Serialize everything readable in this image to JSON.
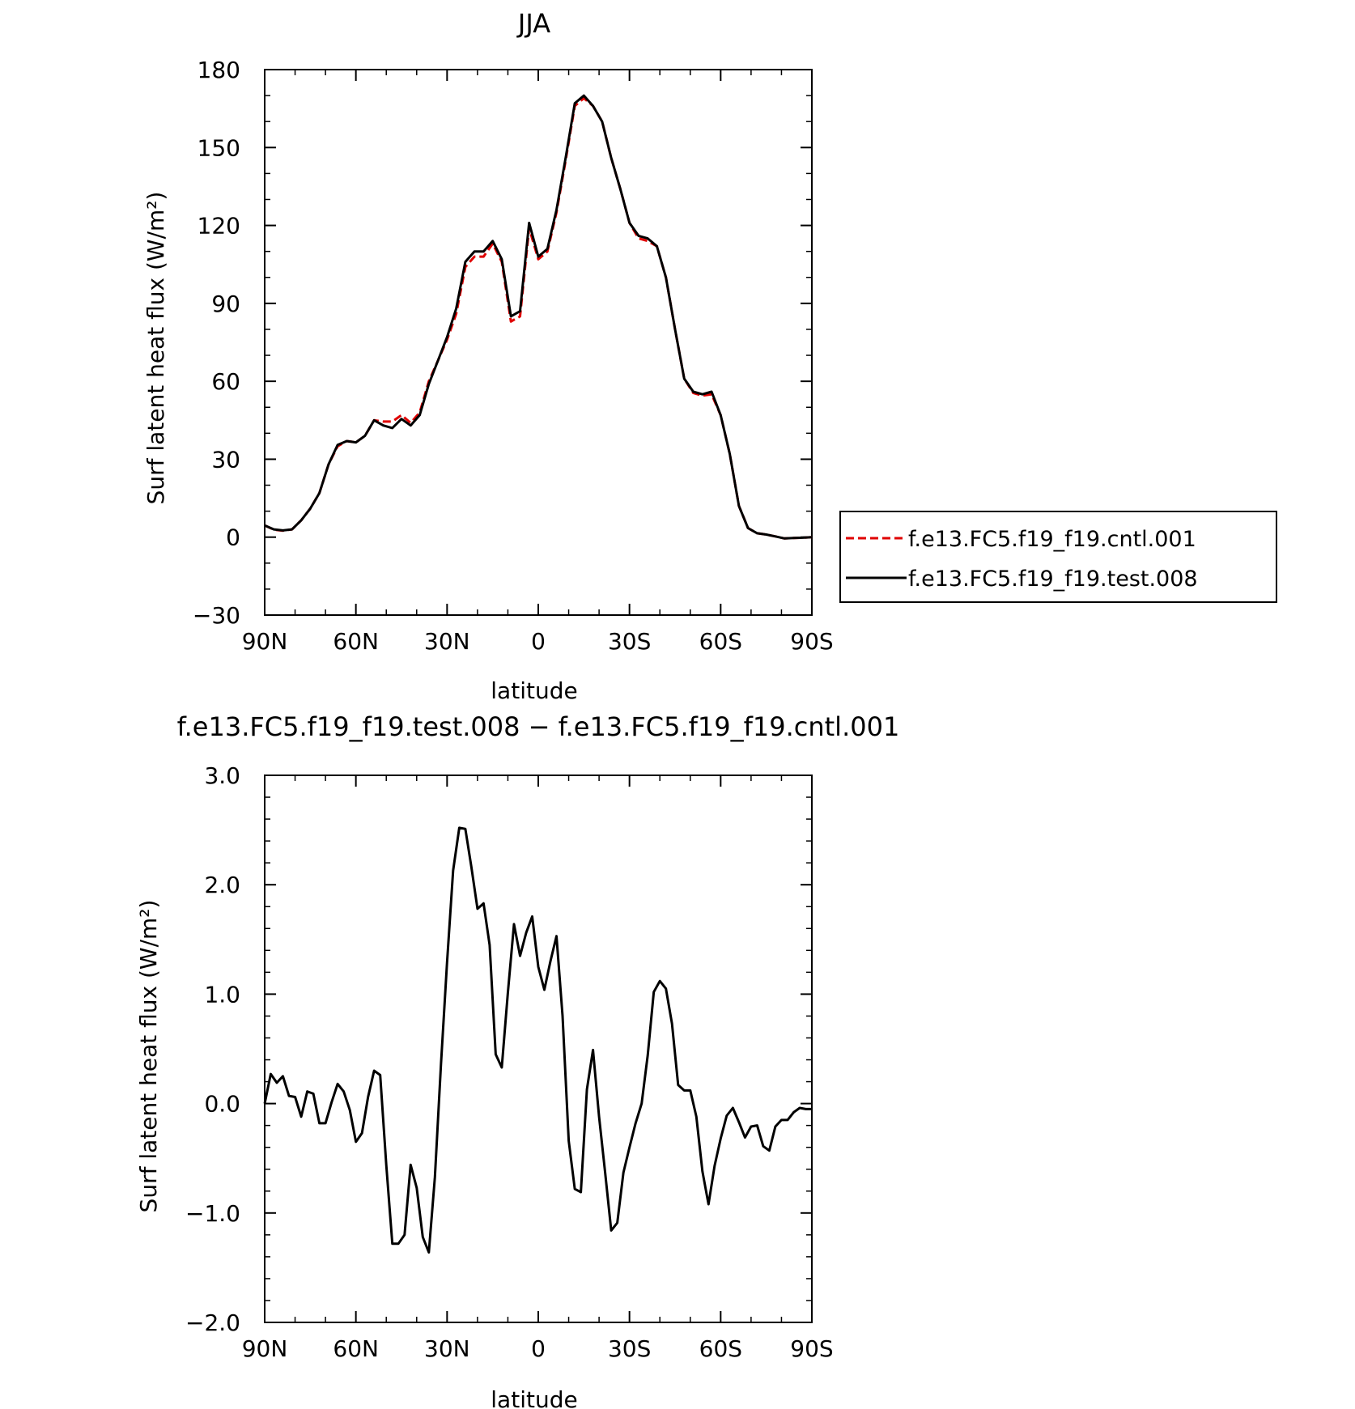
{
  "chart_data": [
    {
      "type": "line",
      "title": "JJA",
      "xlabel": "latitude",
      "ylabel": "Surf latent heat flux (W/m²)",
      "xlim": [
        90,
        -90
      ],
      "ylim": [
        -30,
        180
      ],
      "x_tick_values": [
        90,
        60,
        30,
        0,
        -30,
        -60,
        -90
      ],
      "x_tick_labels": [
        "90N",
        "60N",
        "30N",
        "0",
        "30S",
        "60S",
        "90S"
      ],
      "y_tick_values": [
        -30,
        0,
        30,
        60,
        90,
        120,
        150,
        180
      ],
      "y_tick_labels": [
        "−30",
        "0",
        "30",
        "60",
        "90",
        "120",
        "150",
        "180"
      ],
      "legend": "right",
      "series": [
        {
          "name": "f.e13.FC5.f19_f19.cntl.001",
          "color": "#e00000",
          "style": "dashed",
          "x": [
            90,
            87,
            84,
            81,
            78,
            75,
            72,
            69,
            66,
            63,
            60,
            57,
            54,
            51,
            48,
            45,
            42,
            39,
            36,
            33,
            30,
            27,
            24,
            21,
            18,
            15,
            12,
            9,
            6,
            3,
            0,
            -3,
            -6,
            -9,
            -12,
            -15,
            -18,
            -21,
            -24,
            -27,
            -30,
            -33,
            -36,
            -39,
            -42,
            -45,
            -48,
            -51,
            -54,
            -57,
            -60,
            -63,
            -66,
            -69,
            -72,
            -75,
            -78,
            -81,
            -84,
            -87,
            -90
          ],
          "values": [
            4.5,
            2.9,
            2.5,
            3,
            6.5,
            11,
            17,
            28,
            35,
            37,
            36.5,
            39,
            45,
            44.5,
            44.5,
            47,
            44,
            48,
            60,
            68,
            76,
            86,
            104,
            108,
            108,
            113,
            106,
            83,
            85,
            119,
            107,
            110,
            125,
            145,
            166,
            169,
            166,
            160,
            146,
            134,
            121,
            115,
            114,
            112,
            100,
            80,
            61,
            55.5,
            54.5,
            55,
            47,
            32,
            12,
            3.5,
            1.5,
            1,
            0.3,
            -0.5,
            -0.3,
            -0.2,
            0
          ]
        },
        {
          "name": "f.e13.FC5.f19_f19.test.008",
          "color": "#000000",
          "style": "solid",
          "x": [
            90,
            87,
            84,
            81,
            78,
            75,
            72,
            69,
            66,
            63,
            60,
            57,
            54,
            51,
            48,
            45,
            42,
            39,
            36,
            33,
            30,
            27,
            24,
            21,
            18,
            15,
            12,
            9,
            6,
            3,
            0,
            -3,
            -6,
            -9,
            -12,
            -15,
            -18,
            -21,
            -24,
            -27,
            -30,
            -33,
            -36,
            -39,
            -42,
            -45,
            -48,
            -51,
            -54,
            -57,
            -60,
            -63,
            -66,
            -69,
            -72,
            -75,
            -78,
            -81,
            -84,
            -87,
            -90
          ],
          "values": [
            4.5,
            3,
            2.6,
            3,
            6.5,
            11,
            17,
            28,
            35.5,
            37,
            36.5,
            39,
            45,
            43,
            42,
            45.5,
            43,
            47,
            59,
            68,
            77,
            88,
            106,
            110,
            110,
            114,
            107,
            85,
            87,
            121,
            108,
            111,
            126,
            146,
            167,
            170,
            166,
            160,
            146,
            134,
            121,
            116,
            115,
            112,
            100,
            80,
            61,
            56,
            55,
            56,
            47,
            32,
            12,
            3.5,
            1.5,
            1,
            0.3,
            -0.5,
            -0.3,
            -0.2,
            0
          ]
        }
      ]
    },
    {
      "type": "line",
      "title": "f.e13.FC5.f19_f19.test.008 − f.e13.FC5.f19_f19.cntl.001",
      "xlabel": "latitude",
      "ylabel": "Surf latent heat flux (W/m²)",
      "xlim": [
        90,
        -90
      ],
      "ylim": [
        -2,
        3
      ],
      "x_tick_values": [
        90,
        60,
        30,
        0,
        -30,
        -60,
        -90
      ],
      "x_tick_labels": [
        "90N",
        "60N",
        "30N",
        "0",
        "30S",
        "60S",
        "90S"
      ],
      "y_tick_values": [
        -2,
        -1,
        0,
        1,
        2,
        3
      ],
      "y_tick_labels": [
        "−2.0",
        "−1.0",
        "0.0",
        "1.0",
        "2.0",
        "3.0"
      ],
      "series": [
        {
          "color": "#000000",
          "style": "solid",
          "x": [
            90,
            88,
            86,
            84,
            82,
            80,
            78,
            76,
            74,
            72,
            70,
            68,
            66,
            64,
            62,
            60,
            58,
            56,
            54,
            52,
            50,
            48,
            46,
            44,
            42,
            40,
            38,
            36,
            34,
            32,
            30,
            28,
            26,
            24,
            22,
            20,
            18,
            16,
            14,
            12,
            10,
            8,
            6,
            4,
            2,
            0,
            -2,
            -4,
            -6,
            -8,
            -10,
            -12,
            -14,
            -16,
            -18,
            -20,
            -22,
            -24,
            -26,
            -28,
            -30,
            -32,
            -34,
            -36,
            -38,
            -40,
            -42,
            -44,
            -46,
            -48,
            -50,
            -52,
            -54,
            -56,
            -58,
            -60,
            -62,
            -64,
            -66,
            -68,
            -70,
            -72,
            -74,
            -76,
            -78,
            -80,
            -82,
            -84,
            -86,
            -88,
            -90
          ],
          "values": [
            0.0,
            0.27,
            0.19,
            0.25,
            0.07,
            0.06,
            -0.12,
            0.11,
            0.09,
            -0.18,
            -0.18,
            0.01,
            0.18,
            0.11,
            -0.06,
            -0.35,
            -0.27,
            0.06,
            0.3,
            0.26,
            -0.56,
            -1.28,
            -1.28,
            -1.2,
            -0.56,
            -0.77,
            -1.22,
            -1.36,
            -0.67,
            0.36,
            1.29,
            2.13,
            2.52,
            2.51,
            2.16,
            1.78,
            1.83,
            1.45,
            0.45,
            0.33,
            1.01,
            1.64,
            1.35,
            1.56,
            1.71,
            1.25,
            1.04,
            1.3,
            1.53,
            0.8,
            -0.34,
            -0.78,
            -0.81,
            0.13,
            0.49,
            -0.12,
            -0.63,
            -1.16,
            -1.09,
            -0.63,
            -0.4,
            -0.18,
            0.0,
            0.44,
            1.02,
            1.12,
            1.05,
            0.73,
            0.17,
            0.12,
            0.12,
            -0.12,
            -0.62,
            -0.92,
            -0.57,
            -0.32,
            -0.11,
            -0.04,
            -0.17,
            -0.31,
            -0.21,
            -0.2,
            -0.39,
            -0.43,
            -0.21,
            -0.15,
            -0.15,
            -0.08,
            -0.04,
            -0.05,
            -0.05
          ]
        }
      ]
    }
  ]
}
